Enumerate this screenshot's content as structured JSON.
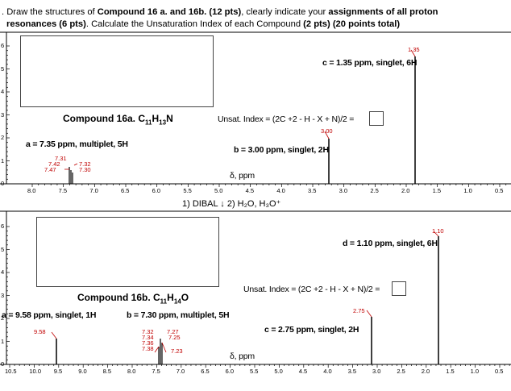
{
  "header": {
    "line1_pre": ". Draw the structures of ",
    "line1_b1": "Compound 16 a. and 16b.",
    "line1_b2": " (12 pts)",
    "line1_mid": ", clearly indicate your ",
    "line1_b3": "assignments of all proton",
    "line2_b1": "resonances (6 pts)",
    "line2_mid": ". Calculate the Unsaturation Index of each Compound ",
    "line2_b2": "(2 pts)",
    "line2_sp": " ",
    "line2_b3": "(20 points total)"
  },
  "spectrum_a": {
    "compound_label": "Compound 16a. C",
    "c_sub": "11",
    "h": "H",
    "h_sub": "13",
    "tail": "N",
    "unsat_label": "Unsat. Index = (2C +2 - H - X + N)/2 =",
    "peak_c_label": "c = 1.35 ppm, singlet, 6H",
    "peak_b_label": "b = 3.00 ppm, singlet, 2H",
    "peak_a_label": "a = 7.35 ppm, multiplet, 5H",
    "axis_title": "δ, ppm",
    "red_labels": [
      "1.35",
      "3.00",
      "7.31",
      "7.42",
      "7.47",
      "7.32",
      "7.30"
    ],
    "ticks": [
      "8.0",
      "7.5",
      "7.0",
      "6.5",
      "6.0",
      "5.5",
      "5.0",
      "4.5",
      "4.0",
      "3.5",
      "3.0",
      "2.5",
      "2.0",
      "1.5",
      "1.0",
      "0.5"
    ],
    "yticks": [
      "6",
      "5",
      "4",
      "3",
      "2",
      "1",
      "0"
    ]
  },
  "reaction": {
    "label": "1) DIBAL  ↓  2) H₂O, H₃O⁺"
  },
  "spectrum_b": {
    "compound_label": "Compound 16b. C",
    "c_sub": "11",
    "h": "H",
    "h_sub": "14",
    "tail": "O",
    "unsat_label": "Unsat. Index = (2C +2 - H - X + N)/2 =",
    "peak_d_label": "d = 1.10 ppm, singlet, 6H",
    "peak_c_label": "c = 2.75 ppm, singlet, 2H",
    "peak_a_label": "a = 9.58 ppm, singlet, 1H",
    "peak_b_label": "b = 7.30 ppm, multiplet, 5H",
    "axis_title": "δ, ppm",
    "red_labels": [
      "1.10",
      "2.75",
      "9.58",
      "7.32",
      "7.34",
      "7.36",
      "7.38",
      "7.27",
      "7.25",
      "7.23"
    ],
    "ticks": [
      "10.5",
      "10.0",
      "9.5",
      "9.0",
      "8.5",
      "8.0",
      "7.5",
      "7.0",
      "6.5",
      "6.0",
      "5.5",
      "5.0",
      "4.5",
      "4.0",
      "3.5",
      "3.0",
      "2.5",
      "2.0",
      "1.5",
      "1.0",
      "0.5"
    ],
    "yticks": [
      "6",
      "5",
      "4",
      "3",
      "2",
      "1",
      "0"
    ]
  }
}
